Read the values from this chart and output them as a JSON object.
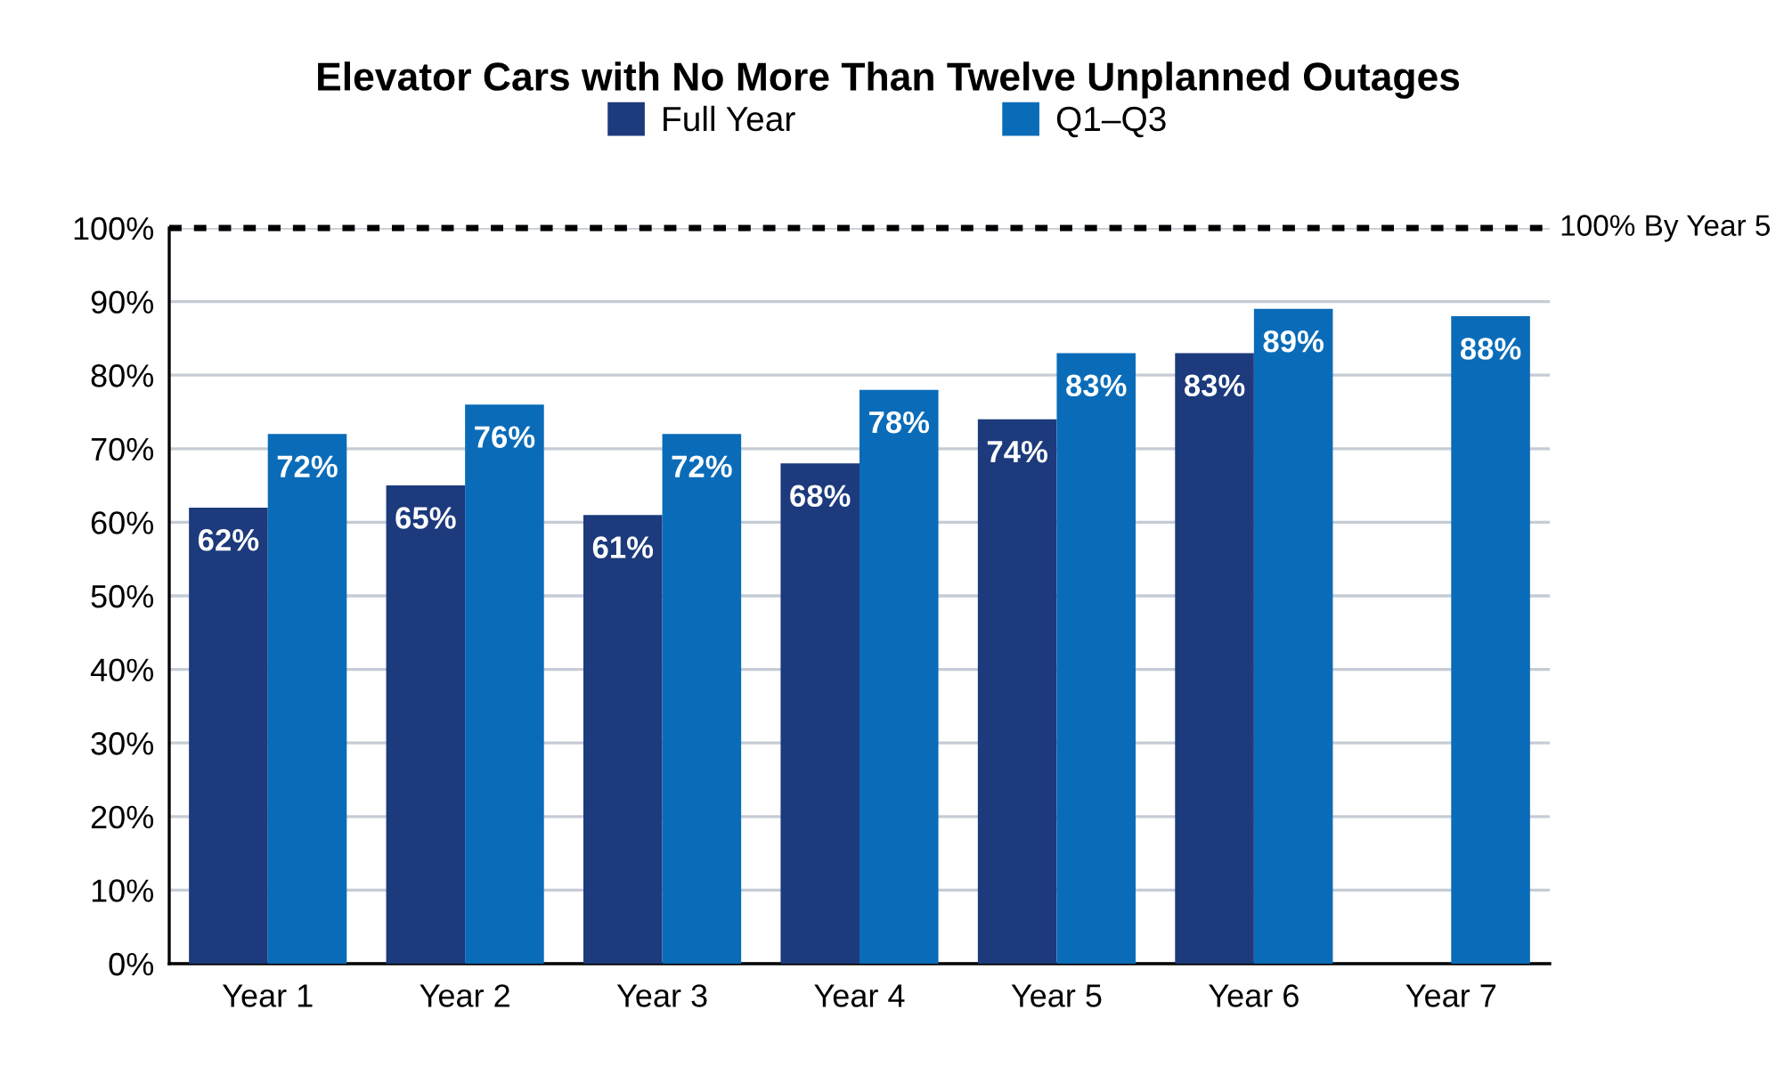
{
  "chart_data": {
    "type": "bar",
    "title": "Elevator Cars with No More Than Twelve Unplanned Outages",
    "categories": [
      "Year 1",
      "Year 2",
      "Year 3",
      "Year 4",
      "Year 5",
      "Year 6",
      "Year 7"
    ],
    "series": [
      {
        "name": "Full Year",
        "color": "#1c3a7c",
        "values": [
          62,
          65,
          61,
          68,
          74,
          83,
          null
        ],
        "value_labels": [
          "62%",
          "65%",
          "61%",
          "68%",
          "74%",
          "83%",
          null
        ]
      },
      {
        "name": "Q1–Q3",
        "color": "#0a6cb8",
        "values": [
          72,
          76,
          72,
          78,
          83,
          89,
          88
        ],
        "value_labels": [
          "72%",
          "76%",
          "72%",
          "78%",
          "83%",
          "89%",
          "88%"
        ]
      }
    ],
    "ylim": [
      0,
      100
    ],
    "yticks": [
      {
        "value": 0,
        "label": "0%"
      },
      {
        "value": 10,
        "label": "10%"
      },
      {
        "value": 20,
        "label": "20%"
      },
      {
        "value": 30,
        "label": "30%"
      },
      {
        "value": 40,
        "label": "40%"
      },
      {
        "value": 50,
        "label": "50%"
      },
      {
        "value": 60,
        "label": "60%"
      },
      {
        "value": 70,
        "label": "70%"
      },
      {
        "value": 80,
        "label": "80%"
      },
      {
        "value": 90,
        "label": "90%"
      },
      {
        "value": 100,
        "label": "100%"
      }
    ],
    "ref_lines": [
      {
        "axis": "y",
        "value": 100,
        "label": "100% By Year 5",
        "color": "#000000",
        "line_style": "dotted"
      }
    ],
    "grid": "y",
    "legend": "top"
  }
}
